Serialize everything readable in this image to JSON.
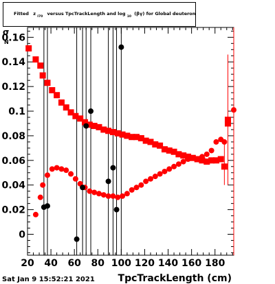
{
  "title_parts": {
    "p1": "Fitted",
    "z": "z",
    "z_sub": "I70",
    "p2": "versus TpcTrackLength and log",
    "log_sub": "10",
    "p3": "(βγ) for Global deuteron"
  },
  "ylabel_glyph": "σ",
  "ylabel_marker": "N",
  "timestamp": "Sat Jan  9 15:52:21 2021",
  "colors": {
    "red": "#ff0000",
    "black": "#000000"
  },
  "chart_data": {
    "type": "scatter",
    "title": "Fitted z_I70 versus TpcTrackLength and log10(βγ) for Global deuteron",
    "xlabel": "TpcTrackLength (cm)",
    "ylabel": "σ",
    "xlim": [
      20,
      196
    ],
    "ylim": [
      -0.017,
      0.168
    ],
    "xticks": [
      20,
      40,
      60,
      80,
      100,
      120,
      140,
      160,
      180
    ],
    "xtick_labels": [
      "20",
      "40",
      "60",
      "80",
      "100",
      "120",
      "140",
      "160",
      "180"
    ],
    "yticks": [
      0,
      0.02,
      0.04,
      0.06,
      0.08,
      0.1,
      0.12,
      0.14,
      0.16
    ],
    "ytick_labels": [
      "0",
      "0.02",
      "0.04",
      "0.06",
      "0.08",
      "0.1",
      "0.12",
      "0.14",
      "0.16"
    ],
    "series": [
      {
        "marker": "square",
        "color": "#ff0000",
        "points": [
          [
            21,
            0.151
          ],
          [
            27,
            0.142
          ],
          [
            31,
            0.137
          ],
          [
            33,
            0.129
          ],
          [
            37,
            0.123
          ],
          [
            41,
            0.117
          ],
          [
            45,
            0.113
          ],
          [
            49,
            0.107
          ],
          [
            53,
            0.103
          ],
          [
            57,
            0.099
          ],
          [
            61,
            0.096
          ],
          [
            65,
            0.094
          ],
          [
            69,
            0.091
          ],
          [
            73,
            0.089
          ],
          [
            77,
            0.088
          ],
          [
            81,
            0.087
          ],
          [
            85,
            0.085
          ],
          [
            89,
            0.084
          ],
          [
            93,
            0.083
          ],
          [
            97,
            0.082
          ],
          [
            101,
            0.081
          ],
          [
            105,
            0.08
          ],
          [
            109,
            0.079
          ],
          [
            113,
            0.079
          ],
          [
            117,
            0.078
          ],
          [
            121,
            0.076
          ],
          [
            125,
            0.075
          ],
          [
            129,
            0.073
          ],
          [
            133,
            0.072
          ],
          [
            137,
            0.069
          ],
          [
            141,
            0.068
          ],
          [
            145,
            0.067
          ],
          [
            149,
            0.065
          ],
          [
            153,
            0.064
          ],
          [
            157,
            0.063
          ],
          [
            161,
            0.062
          ],
          [
            165,
            0.061
          ],
          [
            169,
            0.06
          ],
          [
            173,
            0.059
          ],
          [
            177,
            0.06
          ],
          [
            181,
            0.06
          ],
          [
            185,
            0.061
          ],
          [
            188,
            0.055
          ],
          [
            191,
            0.093
          ],
          [
            191,
            0.09
          ]
        ]
      },
      {
        "marker": "circle",
        "color": "#ff0000",
        "points": [
          [
            27,
            0.016
          ],
          [
            31,
            0.03
          ],
          [
            33,
            0.04
          ],
          [
            37,
            0.048
          ],
          [
            41,
            0.053
          ],
          [
            45,
            0.054
          ],
          [
            49,
            0.053
          ],
          [
            53,
            0.052
          ],
          [
            57,
            0.049
          ],
          [
            61,
            0.045
          ],
          [
            65,
            0.041
          ],
          [
            69,
            0.038
          ],
          [
            73,
            0.035
          ],
          [
            77,
            0.034
          ],
          [
            81,
            0.033
          ],
          [
            85,
            0.032
          ],
          [
            89,
            0.031
          ],
          [
            93,
            0.031
          ],
          [
            97,
            0.03
          ],
          [
            101,
            0.031
          ],
          [
            105,
            0.033
          ],
          [
            109,
            0.036
          ],
          [
            113,
            0.038
          ],
          [
            117,
            0.04
          ],
          [
            121,
            0.043
          ],
          [
            125,
            0.045
          ],
          [
            129,
            0.047
          ],
          [
            133,
            0.049
          ],
          [
            137,
            0.051
          ],
          [
            141,
            0.053
          ],
          [
            145,
            0.055
          ],
          [
            149,
            0.057
          ],
          [
            153,
            0.059
          ],
          [
            157,
            0.061
          ],
          [
            161,
            0.062
          ],
          [
            165,
            0.061
          ],
          [
            169,
            0.063
          ],
          [
            173,
            0.065
          ],
          [
            177,
            0.068
          ],
          [
            181,
            0.075
          ],
          [
            185,
            0.077
          ],
          [
            188,
            0.075
          ],
          [
            196,
            0.101
          ]
        ]
      },
      {
        "marker": "circle",
        "color": "#000000",
        "points": [
          [
            34,
            0.022
          ],
          [
            37,
            0.023
          ],
          [
            62,
            -0.004
          ],
          [
            67,
            0.038
          ],
          [
            70,
            0.088
          ],
          [
            74,
            0.1
          ],
          [
            89,
            0.043
          ],
          [
            93,
            0.054
          ],
          [
            96,
            0.02
          ],
          [
            100,
            0.152
          ]
        ]
      }
    ],
    "error_bars": [
      {
        "x": 34,
        "y": 0.022,
        "ylow": -0.017,
        "yhigh": 0.168,
        "color": "#000000"
      },
      {
        "x": 37,
        "y": 0.023,
        "ylow": -0.017,
        "yhigh": 0.168,
        "color": "#000000"
      },
      {
        "x": 62,
        "y": -0.004,
        "ylow": -0.017,
        "yhigh": 0.168,
        "color": "#000000"
      },
      {
        "x": 67,
        "y": 0.038,
        "ylow": -0.017,
        "yhigh": 0.168,
        "color": "#000000"
      },
      {
        "x": 70,
        "y": 0.088,
        "ylow": -0.017,
        "yhigh": 0.168,
        "color": "#000000"
      },
      {
        "x": 74,
        "y": 0.1,
        "ylow": -0.017,
        "yhigh": 0.168,
        "color": "#000000"
      },
      {
        "x": 89,
        "y": 0.043,
        "ylow": -0.017,
        "yhigh": 0.168,
        "color": "#000000"
      },
      {
        "x": 93,
        "y": 0.054,
        "ylow": -0.017,
        "yhigh": 0.168,
        "color": "#000000"
      },
      {
        "x": 96,
        "y": 0.02,
        "ylow": -0.017,
        "yhigh": 0.168,
        "color": "#000000"
      },
      {
        "x": 100,
        "y": 0.152,
        "ylow": -0.017,
        "yhigh": 0.168,
        "color": "#000000"
      },
      {
        "x": 188,
        "y": 0.055,
        "ylow": 0.04,
        "yhigh": 0.073,
        "color": "#ff0000"
      },
      {
        "x": 191,
        "y": 0.092,
        "ylow": 0.04,
        "yhigh": 0.146,
        "color": "#ff0000"
      },
      {
        "x": 196,
        "y": 0.101,
        "ylow": -0.017,
        "yhigh": 0.168,
        "color": "#ff0000"
      }
    ]
  }
}
